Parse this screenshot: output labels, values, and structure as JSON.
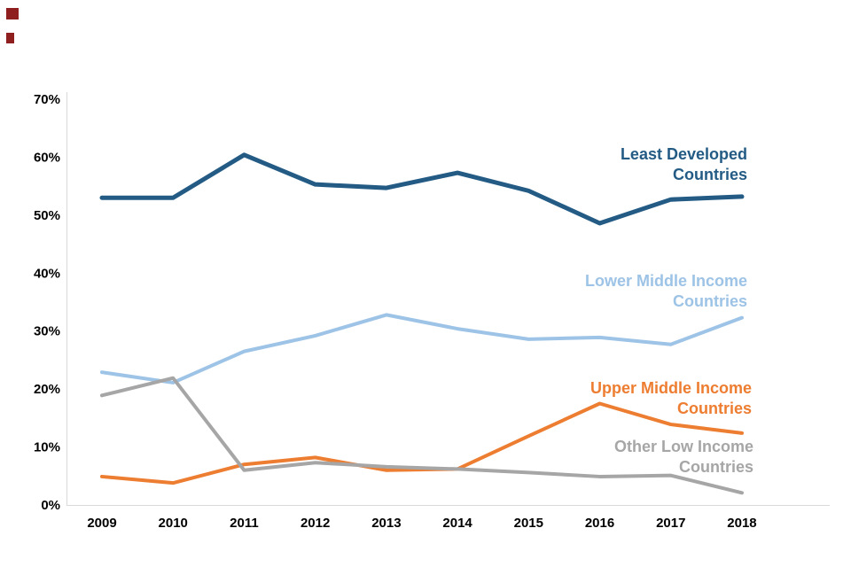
{
  "page": {
    "background": "#ffffff",
    "corner_mark_color": "#8f1f1f"
  },
  "axis_style": {
    "axis_line_color": "#d9d9d9",
    "tick_label_color": "#000000"
  },
  "chart_data": {
    "type": "line",
    "title": "",
    "xlabel": "",
    "ylabel": "",
    "grid": false,
    "legend_position": "inline-labels-right",
    "ylim": [
      0,
      70
    ],
    "ytick_labels": [
      "0%",
      "10%",
      "20%",
      "30%",
      "40%",
      "50%",
      "60%",
      "70%"
    ],
    "x": [
      2009,
      2010,
      2011,
      2012,
      2013,
      2014,
      2015,
      2016,
      2017,
      2018
    ],
    "series": [
      {
        "name": "Least Developed Countries",
        "label_lines": [
          "Least Developed",
          "Countries"
        ],
        "color": "#235b85",
        "line_width": 5,
        "values": [
          53.0,
          53.0,
          60.4,
          55.3,
          54.7,
          57.3,
          54.2,
          48.6,
          52.7,
          53.2
        ]
      },
      {
        "name": "Lower Middle Income Countries",
        "label_lines": [
          "Lower Middle Income",
          "Countries"
        ],
        "color": "#9dc3e6",
        "line_width": 4,
        "values": [
          22.9,
          21.1,
          26.5,
          29.2,
          32.8,
          30.4,
          28.6,
          28.9,
          27.7,
          32.3
        ]
      },
      {
        "name": "Upper Middle Income Countries",
        "label_lines": [
          "Upper Middle Income",
          "Countries"
        ],
        "color": "#ed7d31",
        "line_width": 4,
        "values": [
          4.9,
          3.8,
          7.0,
          8.2,
          6.0,
          6.2,
          11.9,
          17.5,
          13.9,
          12.4
        ]
      },
      {
        "name": "Other Low Income Countries",
        "label_lines": [
          "Other Low Income",
          "Countries"
        ],
        "color": "#a6a6a6",
        "line_width": 4,
        "values": [
          18.9,
          21.9,
          6.0,
          7.3,
          6.6,
          6.2,
          5.6,
          4.9,
          5.1,
          2.1
        ]
      }
    ]
  }
}
